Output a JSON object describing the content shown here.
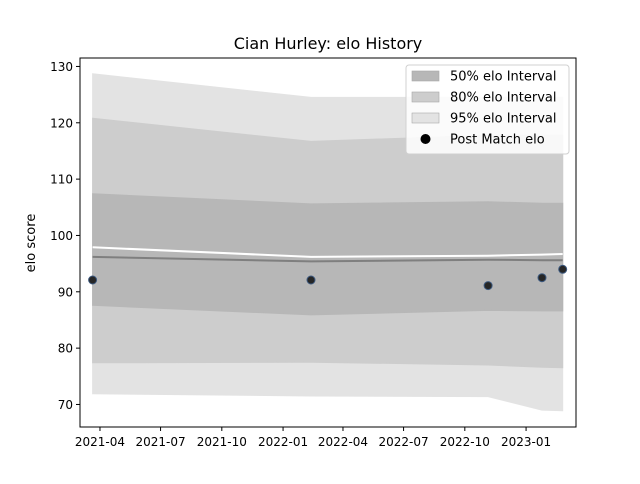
{
  "chart_data": {
    "type": "area",
    "title": "Cian Hurley: elo History",
    "xlabel": "",
    "ylabel": "elo score",
    "x_ticks": [
      "2021-04",
      "2021-07",
      "2021-10",
      "2022-01",
      "2022-04",
      "2022-07",
      "2022-10",
      "2023-01"
    ],
    "y_ticks": [
      70,
      80,
      90,
      100,
      110,
      120,
      130
    ],
    "xlim": [
      "2021-03-02",
      "2023-03-17"
    ],
    "ylim": [
      66,
      131.5
    ],
    "grid": false,
    "legend_position": "top-right",
    "x": [
      "2021-03-21",
      "2022-02-12",
      "2022-11-05",
      "2023-01-25",
      "2023-02-25"
    ],
    "bands": [
      {
        "name": "95% elo Interval",
        "color": "#e3e3e3",
        "upper": [
          128.7,
          124.5,
          124.5,
          124.5,
          124.5
        ],
        "lower": [
          71.9,
          71.5,
          71.4,
          69.0,
          68.9
        ]
      },
      {
        "name": "80% elo Interval",
        "color": "#cdcdcd",
        "upper": [
          120.8,
          116.7,
          117.8,
          117.8,
          117.8
        ],
        "lower": [
          77.4,
          77.5,
          77.0,
          76.6,
          76.5
        ]
      },
      {
        "name": "50% elo Interval",
        "color": "#b7b7b7",
        "upper": [
          107.4,
          105.6,
          106.0,
          105.7,
          105.7
        ],
        "lower": [
          87.6,
          85.9,
          86.7,
          86.6,
          86.6
        ]
      }
    ],
    "lines": [
      {
        "color": "#ffffff",
        "values": [
          97.9,
          96.2,
          96.4,
          96.6,
          96.7
        ]
      },
      {
        "color": "#7f7f7f",
        "values": [
          96.2,
          95.4,
          95.7,
          95.6,
          95.6
        ]
      }
    ],
    "points": {
      "name": "Post Match elo",
      "color": "#000000",
      "values": [
        92.1,
        92.1,
        91.1,
        92.5,
        94.0
      ]
    },
    "legend": [
      {
        "label": "50% elo Interval",
        "kind": "patch",
        "color": "#b7b7b7"
      },
      {
        "label": "80% elo Interval",
        "kind": "patch",
        "color": "#cdcdcd"
      },
      {
        "label": "95% elo Interval",
        "kind": "patch",
        "color": "#e3e3e3"
      },
      {
        "label": "Post Match elo",
        "kind": "marker",
        "color": "#000000"
      }
    ]
  }
}
